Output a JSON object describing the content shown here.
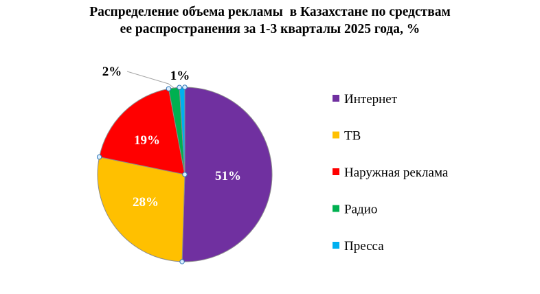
{
  "chart_data": {
    "type": "pie",
    "title_lines": [
      "Распределение объема рекламы  в Казахстане по средствам",
      "ее распространения за 1-3 кварталы 2025 года, %"
    ],
    "categories": [
      "Интернет",
      "ТВ",
      "Наружная реклама",
      "Радио",
      "Пресса"
    ],
    "values": [
      51,
      28,
      19,
      2,
      1
    ],
    "value_labels": [
      "51%",
      "28%",
      "19%",
      "2%",
      "1%"
    ],
    "colors": [
      "#7030A0",
      "#FFC000",
      "#FF0000",
      "#00B050",
      "#00B0F0"
    ],
    "label_colors": [
      "#ffffff",
      "#ffffff",
      "#ffffff",
      "#000000",
      "#000000"
    ],
    "start_angle_deg": 0,
    "direction": "clockwise",
    "legend_position": "right"
  }
}
